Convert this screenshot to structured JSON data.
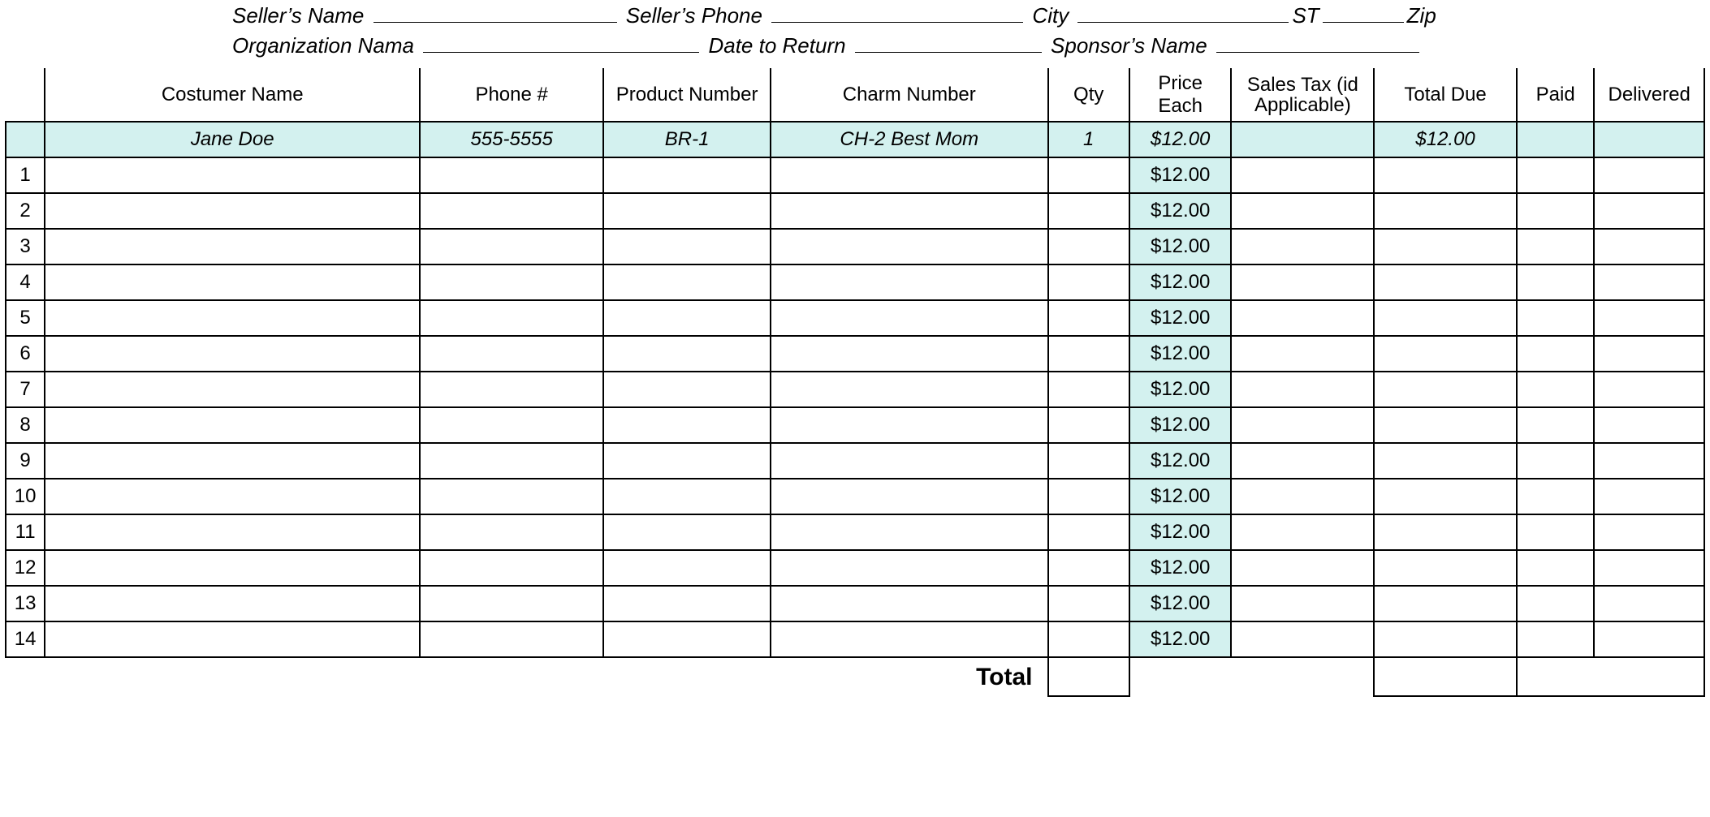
{
  "header": {
    "line1": {
      "seller_name_label": "Seller’s Name",
      "seller_phone_label": "Seller’s Phone",
      "city_label": "City",
      "st_label": "ST",
      "zip_label": "Zip"
    },
    "line2": {
      "org_label": "Organization Nama",
      "return_label": "Date to Return",
      "sponsor_label": "Sponsor’s Name"
    }
  },
  "columns": {
    "name": "Costumer Name",
    "phone": "Phone #",
    "product": "Product Number",
    "charm": "Charm Number",
    "qty": "Qty",
    "price": "Price Each",
    "tax": "Sales Tax (id Applicable)",
    "total": "Total Due",
    "paid": "Paid",
    "delivered": "Delivered"
  },
  "example": {
    "name": "Jane Doe",
    "phone": "555-5555",
    "product": "BR-1",
    "charm": "CH-2 Best Mom",
    "qty": "1",
    "price": "$12.00",
    "tax": "",
    "total": "$12.00",
    "paid": "",
    "delivered": ""
  },
  "default_price": "$12.00",
  "row_count": 14,
  "total_label": "Total",
  "colors": {
    "highlight": "#d3f1ef",
    "border": "#000000",
    "background": "#ffffff",
    "text": "#000000"
  }
}
